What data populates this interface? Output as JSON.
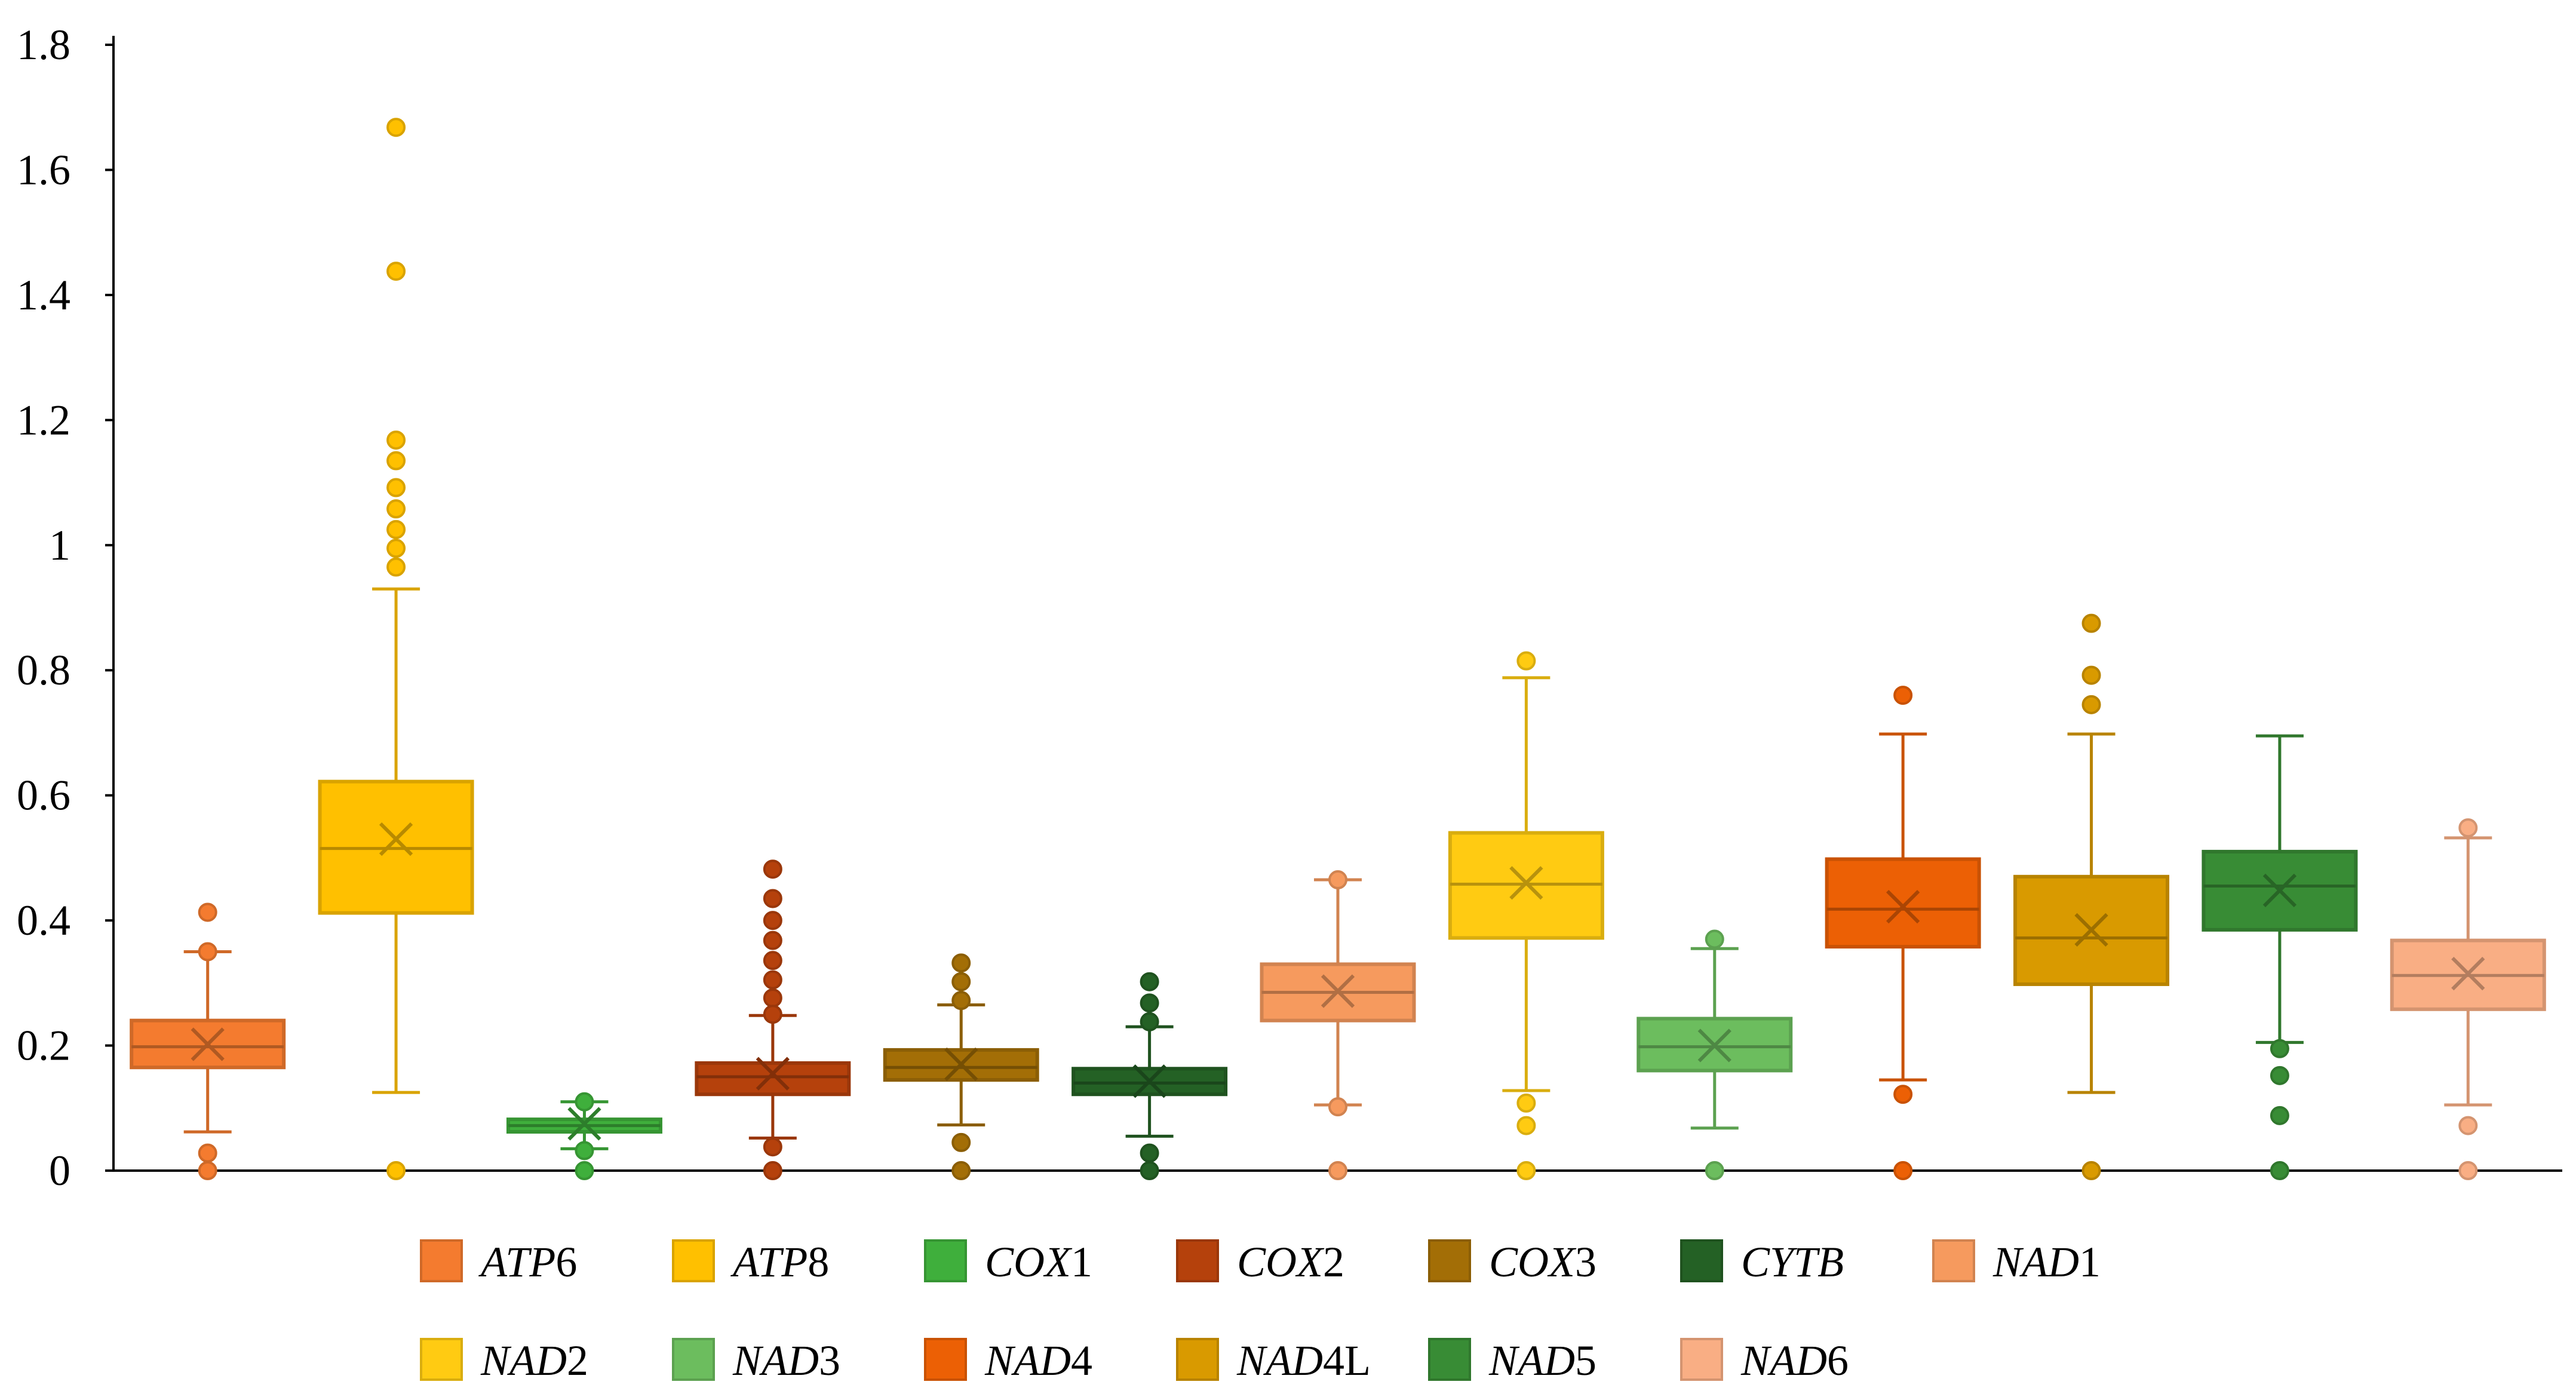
{
  "chart_data": {
    "type": "box",
    "title": "",
    "xlabel": "",
    "ylabel": "",
    "ylim": [
      0,
      1.8
    ],
    "yticks": [
      "0",
      "0.2",
      "0.4",
      "0.6",
      "0.8",
      "1",
      "1.2",
      "1.4",
      "1.6",
      "1.8"
    ],
    "ytick_values": [
      0,
      0.2,
      0.4,
      0.6,
      0.8,
      1.0,
      1.2,
      1.4,
      1.6,
      1.8
    ],
    "legend_position": "bottom",
    "series": [
      {
        "name": "ATP6",
        "italic": "ATP",
        "suffix": "6",
        "color": "#F47B2F",
        "q1": 0.165,
        "median": 0.198,
        "q3": 0.24,
        "mean": 0.202,
        "whisker_low": 0.062,
        "whisker_high": 0.35,
        "outliers": [
          0.413,
          0.35,
          0.028,
          0.0
        ]
      },
      {
        "name": "ATP8",
        "italic": "ATP",
        "suffix": "8",
        "color": "#FFC000",
        "q1": 0.412,
        "median": 0.515,
        "q3": 0.622,
        "mean": 0.53,
        "whisker_low": 0.125,
        "whisker_high": 0.93,
        "outliers": [
          1.668,
          1.438,
          1.168,
          1.135,
          1.092,
          1.058,
          1.025,
          0.995,
          0.965,
          0.0
        ]
      },
      {
        "name": "COX1",
        "italic": "COX",
        "suffix": "1",
        "color": "#3FAF3C",
        "q1": 0.062,
        "median": 0.072,
        "q3": 0.082,
        "mean": 0.075,
        "whisker_low": 0.035,
        "whisker_high": 0.11,
        "outliers": [
          0.11,
          0.032,
          0.0
        ]
      },
      {
        "name": "COX2",
        "italic": "COX",
        "suffix": "2",
        "color": "#B5410C",
        "q1": 0.122,
        "median": 0.15,
        "q3": 0.172,
        "mean": 0.155,
        "whisker_low": 0.052,
        "whisker_high": 0.248,
        "outliers": [
          0.482,
          0.435,
          0.4,
          0.368,
          0.336,
          0.305,
          0.276,
          0.25,
          0.038,
          0.0
        ]
      },
      {
        "name": "COX3",
        "italic": "COX",
        "suffix": "3",
        "color": "#A36E06",
        "q1": 0.145,
        "median": 0.165,
        "q3": 0.193,
        "mean": 0.17,
        "whisker_low": 0.073,
        "whisker_high": 0.265,
        "outliers": [
          0.332,
          0.302,
          0.272,
          0.045,
          0.0
        ]
      },
      {
        "name": "CYTB",
        "italic": "CYTB",
        "suffix": "",
        "color": "#246125",
        "q1": 0.122,
        "median": 0.14,
        "q3": 0.163,
        "mean": 0.143,
        "whisker_low": 0.055,
        "whisker_high": 0.23,
        "outliers": [
          0.302,
          0.268,
          0.238,
          0.028,
          0.0
        ]
      },
      {
        "name": "NAD1",
        "italic": "NAD",
        "suffix": "1",
        "color": "#F69A5E",
        "q1": 0.24,
        "median": 0.285,
        "q3": 0.33,
        "mean": 0.287,
        "whisker_low": 0.105,
        "whisker_high": 0.465,
        "outliers": [
          0.465,
          0.102,
          0.0
        ]
      },
      {
        "name": "NAD2",
        "italic": "NAD",
        "suffix": "2",
        "color": "#FFCB12",
        "q1": 0.372,
        "median": 0.458,
        "q3": 0.54,
        "mean": 0.46,
        "whisker_low": 0.128,
        "whisker_high": 0.788,
        "outliers": [
          0.815,
          0.108,
          0.072,
          0.0
        ]
      },
      {
        "name": "NAD3",
        "italic": "NAD",
        "suffix": "3",
        "color": "#6CBD5E",
        "q1": 0.16,
        "median": 0.198,
        "q3": 0.243,
        "mean": 0.2,
        "whisker_low": 0.068,
        "whisker_high": 0.355,
        "outliers": [
          0.37,
          0.0
        ]
      },
      {
        "name": "NAD4",
        "italic": "NAD",
        "suffix": "4",
        "color": "#EC6005",
        "q1": 0.358,
        "median": 0.418,
        "q3": 0.498,
        "mean": 0.422,
        "whisker_low": 0.145,
        "whisker_high": 0.698,
        "outliers": [
          0.76,
          0.122,
          0.0
        ]
      },
      {
        "name": "NAD4L",
        "italic": "NAD",
        "suffix": "4L",
        "color": "#D99A00",
        "q1": 0.298,
        "median": 0.372,
        "q3": 0.47,
        "mean": 0.385,
        "whisker_low": 0.125,
        "whisker_high": 0.698,
        "outliers": [
          0.875,
          0.792,
          0.745,
          0.0
        ]
      },
      {
        "name": "NAD5",
        "italic": "NAD",
        "suffix": "5",
        "color": "#388C35",
        "q1": 0.385,
        "median": 0.455,
        "q3": 0.51,
        "mean": 0.448,
        "whisker_low": 0.205,
        "whisker_high": 0.695,
        "outliers": [
          0.195,
          0.152,
          0.088,
          0.0
        ]
      },
      {
        "name": "NAD6",
        "italic": "NAD",
        "suffix": "6",
        "color": "#F9AE84",
        "q1": 0.258,
        "median": 0.312,
        "q3": 0.368,
        "mean": 0.315,
        "whisker_low": 0.105,
        "whisker_high": 0.532,
        "outliers": [
          0.548,
          0.072,
          0.0
        ]
      }
    ]
  }
}
